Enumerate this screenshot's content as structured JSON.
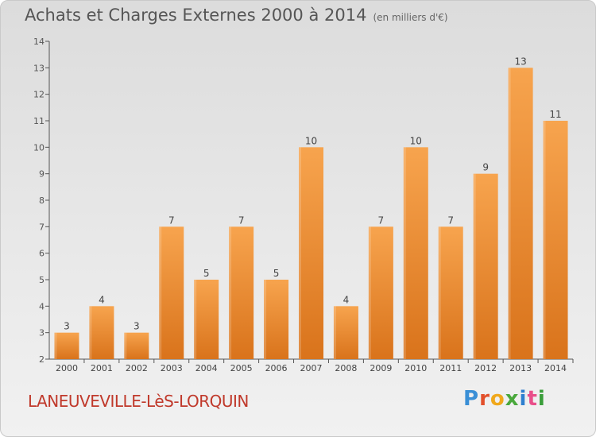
{
  "header": {
    "title": "Achats et Charges Externes 2000 à 2014",
    "unit": "(en milliers d'€)"
  },
  "footer": {
    "city": "LANEUVEVILLE-LèS-LORQUIN",
    "logo": "Proxiti"
  },
  "colors": {
    "bar_light": "#f7a44e",
    "bar_dark": "#d9731b",
    "city": "#c0392b"
  },
  "chart_data": {
    "type": "bar",
    "title": "Achats et Charges Externes 2000 à 2014",
    "subtitle": "(en milliers d'€)",
    "xlabel": "",
    "ylabel": "",
    "ylim": [
      2,
      14
    ],
    "yticks": [
      2,
      3,
      4,
      5,
      6,
      7,
      8,
      9,
      10,
      11,
      12,
      13,
      14
    ],
    "grid": false,
    "categories": [
      "2000",
      "2001",
      "2002",
      "2003",
      "2004",
      "2005",
      "2006",
      "2007",
      "2008",
      "2009",
      "2010",
      "2011",
      "2012",
      "2013",
      "2014"
    ],
    "values": [
      3,
      4,
      3,
      7,
      5,
      7,
      5,
      10,
      4,
      7,
      10,
      7,
      9,
      13,
      11
    ]
  }
}
